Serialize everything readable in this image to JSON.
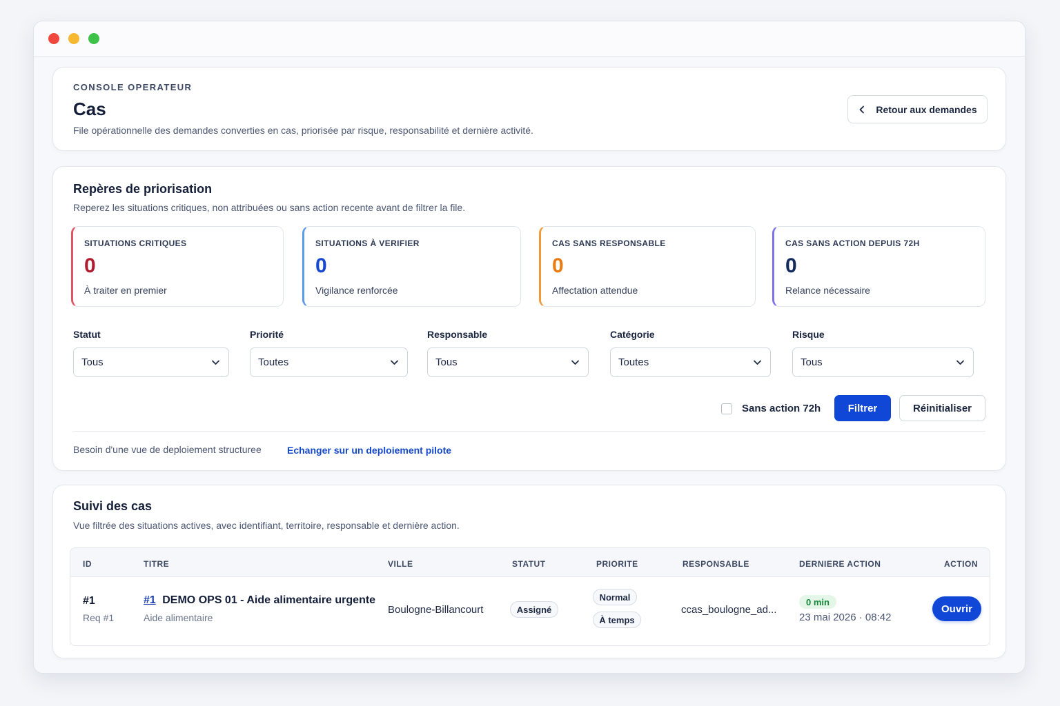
{
  "window": {
    "controls": [
      "close",
      "minimize",
      "maximize"
    ]
  },
  "header": {
    "eyebrow": "CONSOLE OPERATEUR",
    "title": "Cas",
    "subtitle": "File opérationnelle des demandes converties en cas, priorisée par risque, responsabilité et dernière activité.",
    "back_button": "Retour aux demandes"
  },
  "prioritisation": {
    "title": "Repères de priorisation",
    "subtitle": "Reperez les situations critiques, non attribuées ou sans action recente avant de filtrer la file.",
    "stats": [
      {
        "label": "SITUATIONS CRITIQUES",
        "value": "0",
        "desc": "À traiter en premier",
        "color": "#b01c2e",
        "accent": "#e05463"
      },
      {
        "label": "SITUATIONS À VERIFIER",
        "value": "0",
        "desc": "Vigilance renforcée",
        "color": "#1748d0",
        "accent": "#5b9ae8"
      },
      {
        "label": "CAS SANS RESPONSABLE",
        "value": "0",
        "desc": "Affectation attendue",
        "color": "#ea7a12",
        "accent": "#f29a3a"
      },
      {
        "label": "CAS SANS ACTION DEPUIS 72H",
        "value": "0",
        "desc": "Relance nécessaire",
        "color": "#142a5c",
        "accent": "#7d72e6"
      }
    ],
    "filters": [
      {
        "label": "Statut",
        "value": "Tous"
      },
      {
        "label": "Priorité",
        "value": "Toutes"
      },
      {
        "label": "Responsable",
        "value": "Tous"
      },
      {
        "label": "Catégorie",
        "value": "Toutes"
      },
      {
        "label": "Risque",
        "value": "Tous"
      }
    ],
    "checkbox_label": "Sans action 72h",
    "filter_button": "Filtrer",
    "reset_button": "Réinitialiser",
    "footer_note": "Besoin d'une vue de deploiement structuree",
    "footer_link": "Echanger sur un deploiement pilote"
  },
  "suivi": {
    "title": "Suivi des cas",
    "subtitle": "Vue filtrée des situations actives, avec identifiant, territoire, responsable et dernière action.",
    "columns": [
      "ID",
      "TITRE",
      "VILLE",
      "STATUT",
      "PRIORITE",
      "RESPONSABLE",
      "DERNIERE ACTION",
      "ACTION"
    ],
    "rows": [
      {
        "id": "#1",
        "req": "Req #1",
        "title_link": "#1",
        "title": "DEMO OPS 01 - Aide alimentaire urgente",
        "category": "Aide alimentaire",
        "city": "Boulogne-Billancourt",
        "status": "Assigné",
        "priority": "Normal",
        "timing": "À temps",
        "responsible": "ccas_boulogne_ad...",
        "elapsed": "0 min",
        "date": "23 mai 2026 · 08:42",
        "action": "Ouvrir"
      }
    ]
  }
}
